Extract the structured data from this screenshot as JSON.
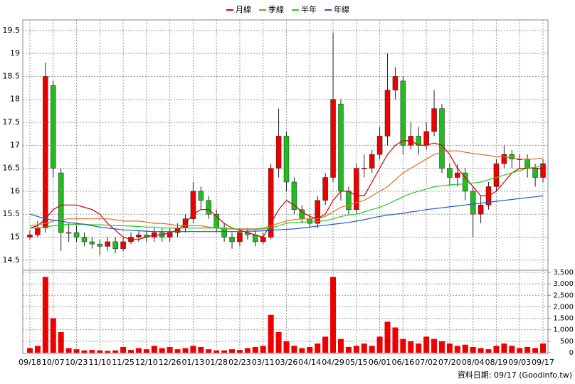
{
  "chart_data": [
    {
      "type": "candlestick",
      "categories": [
        "09/18",
        null,
        null,
        "10/07",
        null,
        null,
        "10/23",
        null,
        null,
        "11/10",
        null,
        null,
        "11/25",
        null,
        null,
        "12/10",
        null,
        null,
        "12/26",
        null,
        null,
        "01/13",
        null,
        null,
        "01/28",
        null,
        null,
        "02/23",
        null,
        null,
        "03/11",
        null,
        null,
        "03/26",
        null,
        null,
        "04/14",
        null,
        null,
        "04/29",
        null,
        null,
        "05/15",
        null,
        null,
        "06/01",
        null,
        null,
        "06/16",
        null,
        null,
        "07/02",
        null,
        null,
        "07/20",
        null,
        null,
        "08/04",
        null,
        null,
        "08/19",
        null,
        null,
        "09/03",
        null,
        null,
        "09/17"
      ],
      "open": [
        15.0,
        15.05,
        15.2,
        18.3,
        16.4,
        15.1,
        15.1,
        15.0,
        14.9,
        14.85,
        14.8,
        14.9,
        14.75,
        14.9,
        15.0,
        15.05,
        15.0,
        15.1,
        15.0,
        15.1,
        15.2,
        15.4,
        16.0,
        15.8,
        15.5,
        15.2,
        15.0,
        14.9,
        15.1,
        15.05,
        14.9,
        15.0,
        16.5,
        17.2,
        16.2,
        15.6,
        15.4,
        15.3,
        15.8,
        16.3,
        17.9,
        16.0,
        15.6,
        16.5,
        16.5,
        16.8,
        17.2,
        18.2,
        18.4,
        17.0,
        17.2,
        17.0,
        17.3,
        17.8,
        16.5,
        16.3,
        16.4,
        16.0,
        15.5,
        15.7,
        16.1,
        16.6,
        16.8,
        16.7,
        16.7,
        16.5,
        16.3
      ],
      "high": [
        15.15,
        15.35,
        18.8,
        18.4,
        16.5,
        15.3,
        15.25,
        15.1,
        15.0,
        14.95,
        15.0,
        15.0,
        15.0,
        15.1,
        15.15,
        15.15,
        15.2,
        15.2,
        15.2,
        15.3,
        15.5,
        16.2,
        16.1,
        15.9,
        15.6,
        15.3,
        15.1,
        15.2,
        15.2,
        15.15,
        15.1,
        16.6,
        17.8,
        17.3,
        16.3,
        15.7,
        15.5,
        15.9,
        16.4,
        19.45,
        18.0,
        16.1,
        16.6,
        16.8,
        16.9,
        17.4,
        19.0,
        18.7,
        18.5,
        17.5,
        17.4,
        17.5,
        18.2,
        17.9,
        16.6,
        16.6,
        16.5,
        16.1,
        15.9,
        16.2,
        16.7,
        17.0,
        16.9,
        16.8,
        16.8,
        16.6,
        16.7
      ],
      "low": [
        14.95,
        15.0,
        15.1,
        16.3,
        14.7,
        14.9,
        14.9,
        14.8,
        14.75,
        14.6,
        14.7,
        14.65,
        14.7,
        14.85,
        14.9,
        14.9,
        14.9,
        14.9,
        14.9,
        15.0,
        15.1,
        15.3,
        15.6,
        15.4,
        15.1,
        14.9,
        14.75,
        14.8,
        14.95,
        14.8,
        14.85,
        14.95,
        16.3,
        16.0,
        15.5,
        15.3,
        15.2,
        15.2,
        15.7,
        16.2,
        15.8,
        15.5,
        15.5,
        16.3,
        16.4,
        16.7,
        17.0,
        18.0,
        16.8,
        16.9,
        16.8,
        16.9,
        17.2,
        16.4,
        16.1,
        16.1,
        15.8,
        15.0,
        15.3,
        15.6,
        16.0,
        16.5,
        16.5,
        16.5,
        16.3,
        16.1,
        16.2
      ],
      "close": [
        15.05,
        15.2,
        18.5,
        16.5,
        15.1,
        15.1,
        15.0,
        14.9,
        14.85,
        14.8,
        14.9,
        14.75,
        14.9,
        15.0,
        15.05,
        15.0,
        15.1,
        15.0,
        15.1,
        15.2,
        15.4,
        16.0,
        15.8,
        15.5,
        15.2,
        15.0,
        14.9,
        15.1,
        15.05,
        14.9,
        15.0,
        16.5,
        17.2,
        16.2,
        15.6,
        15.4,
        15.3,
        15.8,
        16.3,
        18.0,
        16.0,
        15.6,
        16.5,
        16.5,
        16.8,
        17.2,
        18.2,
        18.5,
        17.0,
        17.2,
        17.0,
        17.3,
        17.8,
        16.5,
        16.3,
        16.4,
        16.0,
        15.5,
        15.7,
        16.1,
        16.6,
        16.8,
        16.7,
        16.7,
        16.5,
        16.3,
        16.6
      ],
      "up_color": "#ee0000",
      "down_color": "#22bb22",
      "series": [
        {
          "name": "月線",
          "color": "#cc0000",
          "values": [
            15.2,
            15.25,
            15.4,
            15.6,
            15.7,
            15.7,
            15.7,
            15.65,
            15.6,
            15.5,
            15.3,
            15.15,
            15.0,
            14.95,
            14.95,
            15.0,
            15.05,
            15.05,
            15.1,
            15.15,
            15.3,
            15.5,
            15.6,
            15.6,
            15.45,
            15.3,
            15.2,
            15.15,
            15.1,
            15.05,
            15.0,
            15.3,
            15.6,
            15.8,
            15.7,
            15.55,
            15.45,
            15.4,
            15.5,
            15.8,
            16.0,
            16.0,
            15.9,
            15.9,
            16.2,
            16.5,
            16.8,
            17.0,
            17.1,
            17.1,
            17.0,
            17.0,
            17.05,
            17.0,
            16.8,
            16.5,
            16.3,
            16.1,
            15.9,
            15.9,
            16.0,
            16.2,
            16.4,
            16.5,
            16.5,
            16.5,
            16.5
          ]
        },
        {
          "name": "季線",
          "color": "#e07020",
          "values": [
            15.25,
            15.27,
            15.3,
            15.35,
            15.38,
            15.4,
            15.4,
            15.4,
            15.4,
            15.4,
            15.4,
            15.38,
            15.35,
            15.35,
            15.35,
            15.33,
            15.3,
            15.3,
            15.28,
            15.25,
            15.25,
            15.25,
            15.25,
            15.22,
            15.2,
            15.2,
            15.18,
            15.18,
            15.18,
            15.18,
            15.2,
            15.25,
            15.3,
            15.35,
            15.38,
            15.4,
            15.4,
            15.4,
            15.45,
            15.55,
            15.65,
            15.7,
            15.75,
            15.8,
            15.9,
            16.0,
            16.1,
            16.25,
            16.4,
            16.5,
            16.6,
            16.7,
            16.8,
            16.85,
            16.88,
            16.88,
            16.85,
            16.82,
            16.8,
            16.78,
            16.75,
            16.75,
            16.72,
            16.7,
            16.7,
            16.7,
            16.72
          ]
        },
        {
          "name": "半年",
          "color": "#22cc22",
          "values": [
            15.2,
            15.2,
            15.22,
            15.25,
            15.27,
            15.28,
            15.28,
            15.28,
            15.27,
            15.27,
            15.26,
            15.25,
            15.25,
            15.24,
            15.23,
            15.22,
            15.22,
            15.2,
            15.2,
            15.2,
            15.2,
            15.2,
            15.2,
            15.2,
            15.2,
            15.18,
            15.18,
            15.17,
            15.17,
            15.17,
            15.18,
            15.2,
            15.25,
            15.3,
            15.32,
            15.33,
            15.33,
            15.34,
            15.36,
            15.4,
            15.45,
            15.48,
            15.5,
            15.55,
            15.6,
            15.65,
            15.72,
            15.8,
            15.88,
            15.95,
            16.0,
            16.05,
            16.1,
            16.12,
            16.14,
            16.15,
            16.16,
            16.18,
            16.2,
            16.25,
            16.3,
            16.35,
            16.4,
            16.45,
            16.5,
            16.52,
            16.55
          ]
        },
        {
          "name": "年線",
          "color": "#1e5ad2",
          "values": [
            15.5,
            15.45,
            15.4,
            15.37,
            15.35,
            15.32,
            15.3,
            15.28,
            15.25,
            15.22,
            15.2,
            15.18,
            15.16,
            15.15,
            15.14,
            15.13,
            15.12,
            15.12,
            15.12,
            15.12,
            15.12,
            15.12,
            15.12,
            15.12,
            15.12,
            15.12,
            15.12,
            15.12,
            15.13,
            15.13,
            15.14,
            15.15,
            15.16,
            15.17,
            15.18,
            15.2,
            15.22,
            15.24,
            15.26,
            15.28,
            15.3,
            15.32,
            15.35,
            15.38,
            15.42,
            15.45,
            15.48,
            15.5,
            15.52,
            15.55,
            15.57,
            15.6,
            15.62,
            15.64,
            15.66,
            15.68,
            15.7,
            15.72,
            15.74,
            15.76,
            15.78,
            15.8,
            15.82,
            15.84,
            15.86,
            15.88,
            15.9
          ]
        }
      ],
      "ylim": [
        14.28,
        19.73
      ],
      "yticks": [
        14.5,
        15,
        15.5,
        16,
        16.5,
        17,
        17.5,
        18,
        18.5,
        19,
        19.5
      ],
      "grid": true
    },
    {
      "type": "bar",
      "color": "#ee0000",
      "values": [
        200,
        300,
        3300,
        1500,
        900,
        200,
        150,
        100,
        120,
        100,
        80,
        100,
        250,
        120,
        200,
        150,
        300,
        200,
        250,
        150,
        200,
        300,
        250,
        150,
        100,
        100,
        150,
        120,
        200,
        250,
        300,
        1650,
        900,
        500,
        300,
        200,
        250,
        400,
        700,
        3300,
        600,
        250,
        300,
        400,
        300,
        700,
        1350,
        1100,
        600,
        500,
        400,
        700,
        600,
        500,
        400,
        300,
        350,
        250,
        200,
        150,
        300,
        400,
        300,
        200,
        250,
        200,
        400
      ],
      "ylim": [
        0,
        3500
      ],
      "yticks": [
        0,
        {
          "value": 500,
          "label": "500"
        },
        {
          "value": 1000,
          "label": "1,000"
        },
        {
          "value": 1500,
          "label": "1,500"
        },
        {
          "value": 2000,
          "label": "2,000"
        },
        {
          "value": 2500,
          "label": "2,500"
        },
        {
          "value": 3000,
          "label": "3,000"
        },
        {
          "value": 3500,
          "label": "3,500"
        }
      ],
      "grid": true,
      "source": "資料日期: 09/17 (Goodinfo.tw)"
    }
  ]
}
